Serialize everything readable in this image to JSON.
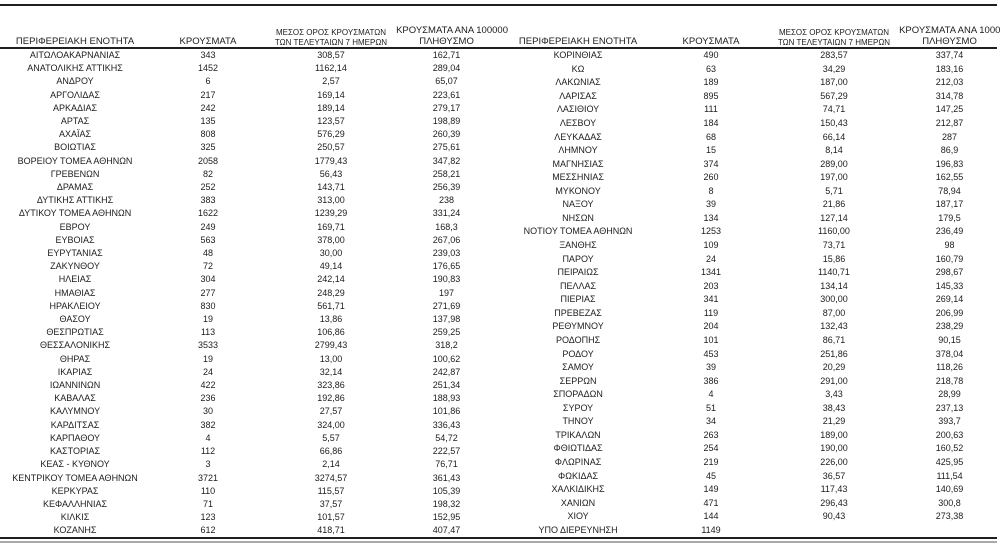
{
  "headers": {
    "region": "ΠΕΡΙΦΕΡΕΙΑΚΗ ΕΝΟΤΗΤΑ",
    "cases": "ΚΡΟΥΣΜΑΤΑ",
    "avg7_line1": "ΜΕΣΟΣ ΟΡΟΣ ΚΡΟΥΣΜΑΤΩΝ",
    "avg7_line2": "ΤΩΝ ΤΕΛΕΥΤΑΙΩΝ 7 ΗΜΕΡΩΝ",
    "per100k_line1": "ΚΡΟΥΣΜΑΤΑ ΑΝΑ 100000",
    "per100k_line2": "ΠΛΗΘΥΣΜΟ"
  },
  "left_table": {
    "rows": [
      [
        "ΑΙΤΩΛΟΑΚΑΡΝΑΝΙΑΣ",
        "343",
        "308,57",
        "162,71"
      ],
      [
        "ΑΝΑΤΟΛΙΚΗΣ ΑΤΤΙΚΗΣ",
        "1452",
        "1162,14",
        "289,04"
      ],
      [
        "ΑΝΔΡΟΥ",
        "6",
        "2,57",
        "65,07"
      ],
      [
        "ΑΡΓΟΛΙΔΑΣ",
        "217",
        "169,14",
        "223,61"
      ],
      [
        "ΑΡΚΑΔΙΑΣ",
        "242",
        "189,14",
        "279,17"
      ],
      [
        "ΑΡΤΑΣ",
        "135",
        "123,57",
        "198,89"
      ],
      [
        "ΑΧΑΪΑΣ",
        "808",
        "576,29",
        "260,39"
      ],
      [
        "ΒΟΙΩΤΙΑΣ",
        "325",
        "250,57",
        "275,61"
      ],
      [
        "ΒΟΡΕΙΟΥ ΤΟΜΕΑ ΑΘΗΝΩΝ",
        "2058",
        "1779,43",
        "347,82"
      ],
      [
        "ΓΡΕΒΕΝΩΝ",
        "82",
        "56,43",
        "258,21"
      ],
      [
        "ΔΡΑΜΑΣ",
        "252",
        "143,71",
        "256,39"
      ],
      [
        "ΔΥΤΙΚΗΣ ΑΤΤΙΚΗΣ",
        "383",
        "313,00",
        "238"
      ],
      [
        "ΔΥΤΙΚΟΥ ΤΟΜΕΑ ΑΘΗΝΩΝ",
        "1622",
        "1239,29",
        "331,24"
      ],
      [
        "ΕΒΡΟΥ",
        "249",
        "169,71",
        "168,3"
      ],
      [
        "ΕΥΒΟΙΑΣ",
        "563",
        "378,00",
        "267,06"
      ],
      [
        "ΕΥΡΥΤΑΝΙΑΣ",
        "48",
        "30,00",
        "239,03"
      ],
      [
        "ΖΑΚΥΝΘΟΥ",
        "72",
        "49,14",
        "176,65"
      ],
      [
        "ΗΛΕΙΑΣ",
        "304",
        "242,14",
        "190,83"
      ],
      [
        "ΗΜΑΘΙΑΣ",
        "277",
        "248,29",
        "197"
      ],
      [
        "ΗΡΑΚΛΕΙΟΥ",
        "830",
        "561,71",
        "271,69"
      ],
      [
        "ΘΑΣΟΥ",
        "19",
        "13,86",
        "137,98"
      ],
      [
        "ΘΕΣΠΡΩΤΙΑΣ",
        "113",
        "106,86",
        "259,25"
      ],
      [
        "ΘΕΣΣΑΛΟΝΙΚΗΣ",
        "3533",
        "2799,43",
        "318,2"
      ],
      [
        "ΘΗΡΑΣ",
        "19",
        "13,00",
        "100,62"
      ],
      [
        "ΙΚΑΡΙΑΣ",
        "24",
        "32,14",
        "242,87"
      ],
      [
        "ΙΩΑΝΝΙΝΩΝ",
        "422",
        "323,86",
        "251,34"
      ],
      [
        "ΚΑΒΑΛΑΣ",
        "236",
        "192,86",
        "188,93"
      ],
      [
        "ΚΑΛΥΜΝΟΥ",
        "30",
        "27,57",
        "101,86"
      ],
      [
        "ΚΑΡΔΙΤΣΑΣ",
        "382",
        "324,00",
        "336,43"
      ],
      [
        "ΚΑΡΠΑΘΟΥ",
        "4",
        "5,57",
        "54,72"
      ],
      [
        "ΚΑΣΤΟΡΙΑΣ",
        "112",
        "66,86",
        "222,57"
      ],
      [
        "ΚΕΑΣ - ΚΥΘΝΟΥ",
        "3",
        "2,14",
        "76,71"
      ],
      [
        "ΚΕΝΤΡΙΚΟΥ ΤΟΜΕΑ ΑΘΗΝΩΝ",
        "3721",
        "3274,57",
        "361,43"
      ],
      [
        "ΚΕΡΚΥΡΑΣ",
        "110",
        "115,57",
        "105,39"
      ],
      [
        "ΚΕΦΑΛΛΗΝΙΑΣ",
        "71",
        "37,57",
        "198,32"
      ],
      [
        "ΚΙΛΚΙΣ",
        "123",
        "101,57",
        "152,95"
      ],
      [
        "ΚΟΖΑΝΗΣ",
        "612",
        "418,71",
        "407,47"
      ]
    ]
  },
  "right_table": {
    "rows": [
      [
        "ΚΟΡΙΝΘΙΑΣ",
        "490",
        "283,57",
        "337,74"
      ],
      [
        "ΚΩ",
        "63",
        "34,29",
        "183,16"
      ],
      [
        "ΛΑΚΩΝΙΑΣ",
        "189",
        "187,00",
        "212,03"
      ],
      [
        "ΛΑΡΙΣΑΣ",
        "895",
        "567,29",
        "314,78"
      ],
      [
        "ΛΑΣΙΘΙΟΥ",
        "111",
        "74,71",
        "147,25"
      ],
      [
        "ΛΕΣΒΟΥ",
        "184",
        "150,43",
        "212,87"
      ],
      [
        "ΛΕΥΚΑΔΑΣ",
        "68",
        "66,14",
        "287"
      ],
      [
        "ΛΗΜΝΟΥ",
        "15",
        "8,14",
        "86,9"
      ],
      [
        "ΜΑΓΝΗΣΙΑΣ",
        "374",
        "289,00",
        "196,83"
      ],
      [
        "ΜΕΣΣΗΝΙΑΣ",
        "260",
        "197,00",
        "162,55"
      ],
      [
        "ΜΥΚΟΝΟΥ",
        "8",
        "5,71",
        "78,94"
      ],
      [
        "ΝΑΞΟΥ",
        "39",
        "21,86",
        "187,17"
      ],
      [
        "ΝΗΣΩΝ",
        "134",
        "127,14",
        "179,5"
      ],
      [
        "ΝΟΤΙΟΥ ΤΟΜΕΑ ΑΘΗΝΩΝ",
        "1253",
        "1160,00",
        "236,49"
      ],
      [
        "ΞΑΝΘΗΣ",
        "109",
        "73,71",
        "98"
      ],
      [
        "ΠΑΡΟΥ",
        "24",
        "15,86",
        "160,79"
      ],
      [
        "ΠΕΙΡΑΙΩΣ",
        "1341",
        "1140,71",
        "298,67"
      ],
      [
        "ΠΕΛΛΑΣ",
        "203",
        "134,14",
        "145,33"
      ],
      [
        "ΠΙΕΡΙΑΣ",
        "341",
        "300,00",
        "269,14"
      ],
      [
        "ΠΡΕΒΕΖΑΣ",
        "119",
        "87,00",
        "206,99"
      ],
      [
        "ΡΕΘΥΜΝΟΥ",
        "204",
        "132,43",
        "238,29"
      ],
      [
        "ΡΟΔΟΠΗΣ",
        "101",
        "86,71",
        "90,15"
      ],
      [
        "ΡΟΔΟΥ",
        "453",
        "251,86",
        "378,04"
      ],
      [
        "ΣΑΜΟΥ",
        "39",
        "20,29",
        "118,26"
      ],
      [
        "ΣΕΡΡΩΝ",
        "386",
        "291,00",
        "218,78"
      ],
      [
        "ΣΠΟΡΑΔΩΝ",
        "4",
        "3,43",
        "28,99"
      ],
      [
        "ΣΥΡΟΥ",
        "51",
        "38,43",
        "237,13"
      ],
      [
        "ΤΗΝΟΥ",
        "34",
        "21,29",
        "393,7"
      ],
      [
        "ΤΡΙΚΑΛΩΝ",
        "263",
        "189,00",
        "200,63"
      ],
      [
        "ΦΘΙΩΤΙΔΑΣ",
        "254",
        "190,00",
        "160,52"
      ],
      [
        "ΦΛΩΡΙΝΑΣ",
        "219",
        "226,00",
        "425,95"
      ],
      [
        "ΦΩΚΙΔΑΣ",
        "45",
        "36,57",
        "111,54"
      ],
      [
        "ΧΑΛΚΙΔΙΚΗΣ",
        "149",
        "117,43",
        "140,69"
      ],
      [
        "ΧΑΝΙΩΝ",
        "471",
        "296,43",
        "300,8"
      ],
      [
        "ΧΙΟΥ",
        "144",
        "90,43",
        "273,38"
      ],
      [
        "ΥΠΟ ΔΙΕΡΕΥΝΗΣΗ",
        "1149",
        "",
        ""
      ]
    ]
  }
}
